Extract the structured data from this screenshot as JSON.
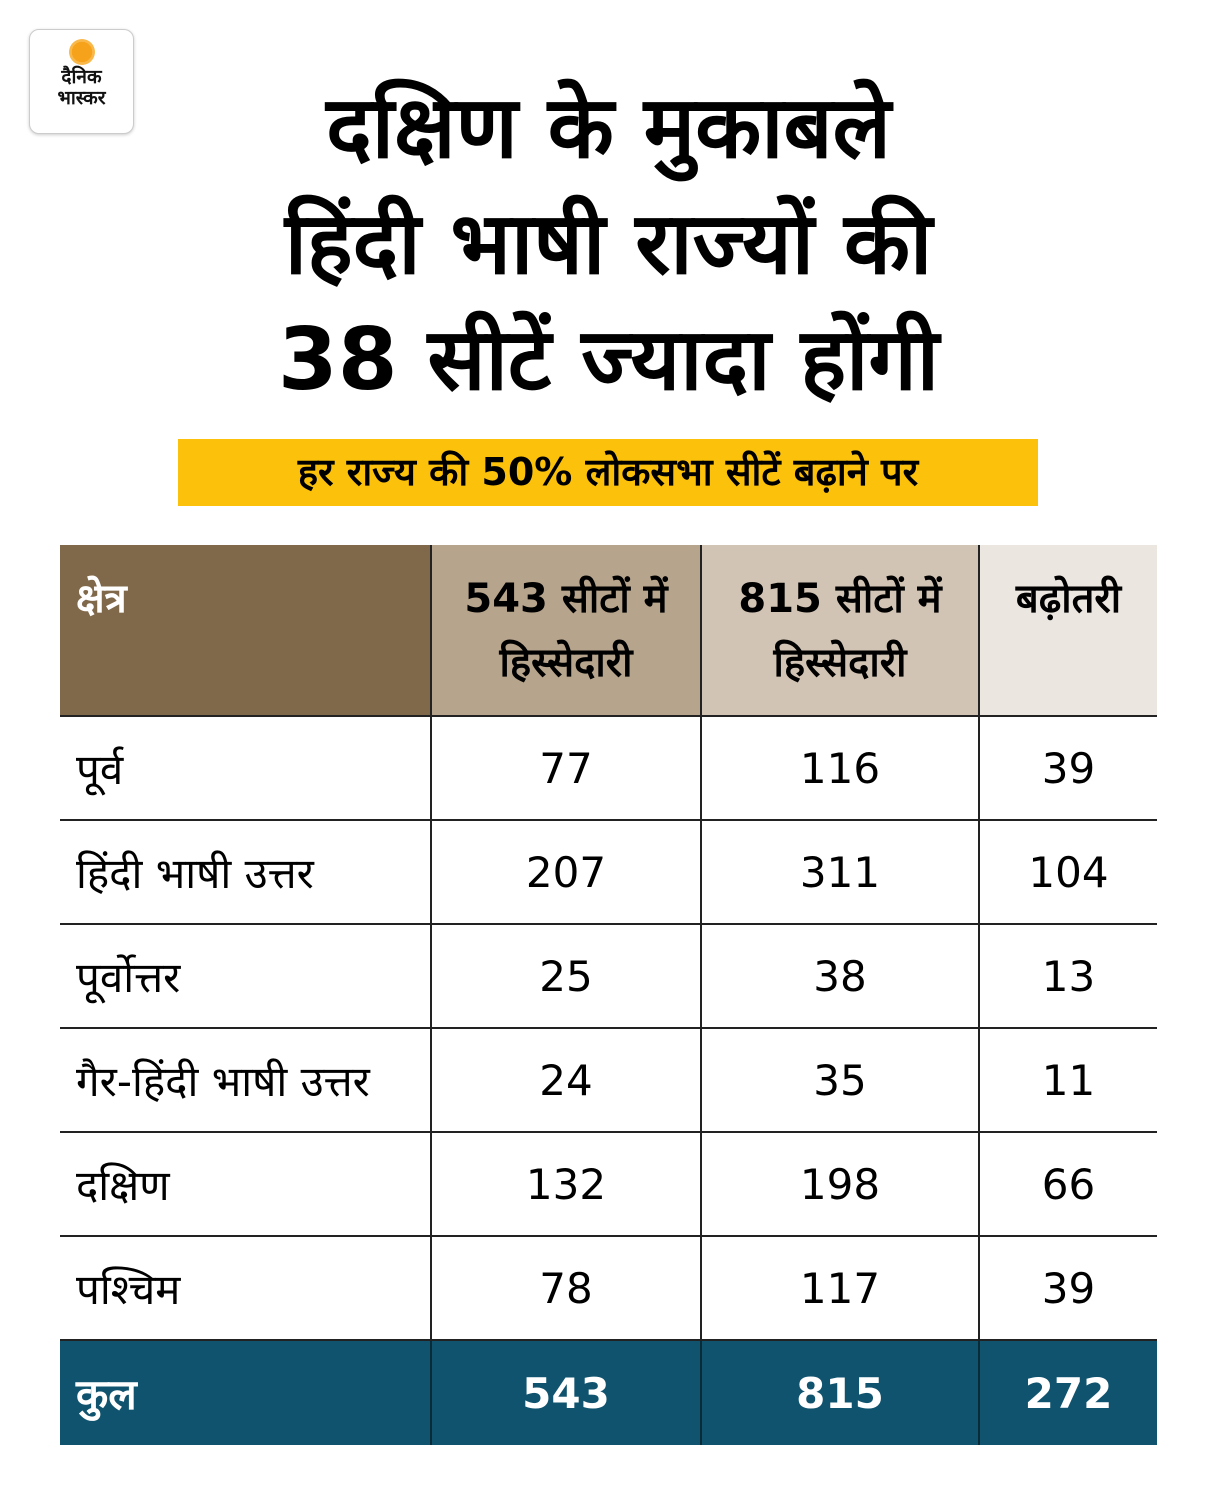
{
  "logo": {
    "line1": "दैनिक",
    "line2": "भास्कर"
  },
  "title_lines": [
    "दक्षिण के मुकाबले",
    "हिंदी भाषी राज्यों की",
    "38 सीटें ज्यादा होंगी"
  ],
  "subtitle": "हर राज्य की 50% लोकसभा सीटें बढ़ाने पर",
  "colors": {
    "header_region": "#80684a",
    "header_543": "#b7a48c",
    "header_815": "#d2c4b4",
    "header_increase": "#ece6e0",
    "total_row": "#10536e",
    "subtitle_bg": "#fcc10b"
  },
  "chart_data": {
    "type": "table",
    "title": "दक्षिण के मुकाबले हिंदी भाषी राज्यों की 38 सीटें ज्यादा होंगी",
    "subtitle": "हर राज्य की 50% लोकसभा सीटें बढ़ाने पर",
    "columns": [
      "क्षेत्र",
      "543 सीटों में हिस्सेदारी",
      "815 सीटों में हिस्सेदारी",
      "बढ़ोतरी"
    ],
    "rows": [
      [
        "पूर्व",
        "77",
        "116",
        "39"
      ],
      [
        "हिंदी भाषी उत्तर",
        "207",
        "311",
        "104"
      ],
      [
        "पूर्वोत्तर",
        "25",
        "38",
        "13"
      ],
      [
        "गैर-हिंदी भाषी उत्तर",
        "24",
        "35",
        "11"
      ],
      [
        "दक्षिण",
        "132",
        "198",
        "66"
      ],
      [
        "पश्चिम",
        "78",
        "117",
        "39"
      ]
    ],
    "total": [
      "कुल",
      "543",
      "815",
      "272"
    ]
  }
}
